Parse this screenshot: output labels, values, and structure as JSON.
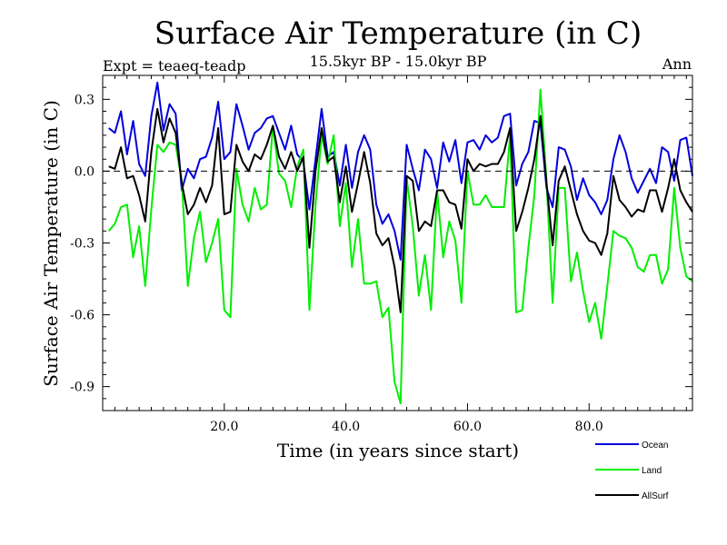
{
  "chart_data": {
    "type": "line",
    "title": "Surface Air Temperature (in C)",
    "subtitle": "15.5kyr BP - 15.0kyr BP",
    "expt_label": "Expt = teaeq-teadp",
    "period_label": "Ann",
    "xlabel": "Time (in years since start)",
    "ylabel": "Surface Air Temperature (in C)",
    "xlim": [
      0,
      97
    ],
    "ylim": [
      -1.0,
      0.4
    ],
    "x_ticks": [
      20,
      40,
      60,
      80
    ],
    "x_tick_labels": [
      "20.0",
      "40.0",
      "60.0",
      "80.0"
    ],
    "y_ticks": [
      0.3,
      0.0,
      -0.3,
      -0.6,
      -0.9
    ],
    "y_tick_labels": [
      "0.3",
      "0.0",
      "-0.3",
      "-0.6",
      "-0.9"
    ],
    "zero_line": "dashed",
    "legend_position": "bottom-right",
    "series": [
      {
        "name": "Ocean",
        "color": "#0000dd",
        "values": [
          0.18,
          0.16,
          0.25,
          0.07,
          0.21,
          0.03,
          -0.02,
          0.23,
          0.37,
          0.17,
          0.28,
          0.24,
          -0.08,
          0.01,
          -0.03,
          0.05,
          0.06,
          0.14,
          0.29,
          0.05,
          0.08,
          0.28,
          0.19,
          0.09,
          0.16,
          0.18,
          0.22,
          0.23,
          0.16,
          0.09,
          0.19,
          0.07,
          0.04,
          -0.16,
          0.05,
          0.26,
          0.06,
          0.08,
          -0.06,
          0.11,
          -0.07,
          0.08,
          0.15,
          0.09,
          -0.14,
          -0.22,
          -0.18,
          -0.25,
          -0.37,
          0.11,
          0.01,
          -0.08,
          0.09,
          0.05,
          -0.07,
          0.12,
          0.04,
          0.13,
          -0.05,
          0.12,
          0.13,
          0.09,
          0.15,
          0.12,
          0.14,
          0.23,
          0.24,
          -0.06,
          0.03,
          0.08,
          0.21,
          0.2,
          -0.07,
          -0.15,
          0.1,
          0.09,
          0.02,
          -0.12,
          -0.03,
          -0.1,
          -0.13,
          -0.18,
          -0.12,
          0.05,
          0.15,
          0.08,
          -0.03,
          -0.09,
          -0.04,
          0.01,
          -0.05,
          0.1,
          0.08,
          -0.04,
          0.13,
          0.14,
          -0.02
        ]
      },
      {
        "name": "Land",
        "color": "#00ee00",
        "values": [
          -0.25,
          -0.22,
          -0.15,
          -0.14,
          -0.36,
          -0.23,
          -0.48,
          -0.16,
          0.11,
          0.08,
          0.12,
          0.11,
          -0.04,
          -0.48,
          -0.28,
          -0.17,
          -0.38,
          -0.3,
          -0.2,
          -0.58,
          -0.61,
          0.01,
          -0.14,
          -0.21,
          -0.07,
          -0.16,
          -0.14,
          0.19,
          -0.01,
          -0.04,
          -0.15,
          0.02,
          0.09,
          -0.58,
          -0.14,
          0.15,
          0.03,
          0.15,
          -0.23,
          -0.05,
          -0.4,
          -0.2,
          -0.47,
          -0.47,
          -0.46,
          -0.61,
          -0.57,
          -0.88,
          -0.97,
          -0.03,
          -0.23,
          -0.52,
          -0.35,
          -0.58,
          -0.08,
          -0.36,
          -0.21,
          -0.29,
          -0.55,
          0.0,
          -0.14,
          -0.14,
          -0.1,
          -0.15,
          -0.15,
          -0.15,
          0.15,
          -0.59,
          -0.58,
          -0.32,
          -0.1,
          0.34,
          -0.04,
          -0.55,
          -0.07,
          -0.07,
          -0.46,
          -0.34,
          -0.5,
          -0.63,
          -0.55,
          -0.7,
          -0.48,
          -0.25,
          -0.27,
          -0.28,
          -0.32,
          -0.4,
          -0.42,
          -0.35,
          -0.35,
          -0.47,
          -0.41,
          -0.07,
          -0.32,
          -0.44,
          -0.46
        ]
      },
      {
        "name": "AllSurf",
        "color": "#000000",
        "values": [
          0.02,
          0.01,
          0.1,
          -0.03,
          -0.02,
          -0.1,
          -0.21,
          0.08,
          0.26,
          0.12,
          0.22,
          0.16,
          -0.05,
          -0.18,
          -0.14,
          -0.07,
          -0.13,
          -0.06,
          0.18,
          -0.18,
          -0.17,
          0.11,
          0.04,
          0.0,
          0.07,
          0.05,
          0.11,
          0.19,
          0.06,
          0.01,
          0.08,
          0.0,
          0.06,
          -0.32,
          0.0,
          0.18,
          0.04,
          0.06,
          -0.13,
          0.02,
          -0.17,
          -0.05,
          0.08,
          -0.05,
          -0.26,
          -0.31,
          -0.28,
          -0.4,
          -0.59,
          -0.02,
          -0.04,
          -0.25,
          -0.21,
          -0.23,
          -0.08,
          -0.08,
          -0.13,
          -0.14,
          -0.24,
          0.05,
          0.0,
          0.03,
          0.02,
          0.03,
          0.03,
          0.08,
          0.18,
          -0.25,
          -0.17,
          -0.07,
          0.05,
          0.23,
          -0.05,
          -0.31,
          -0.04,
          0.02,
          -0.08,
          -0.18,
          -0.25,
          -0.29,
          -0.3,
          -0.35,
          -0.26,
          -0.02,
          -0.12,
          -0.15,
          -0.19,
          -0.16,
          -0.17,
          -0.08,
          -0.08,
          -0.17,
          -0.07,
          0.05,
          -0.08,
          -0.13,
          -0.17
        ]
      }
    ]
  }
}
